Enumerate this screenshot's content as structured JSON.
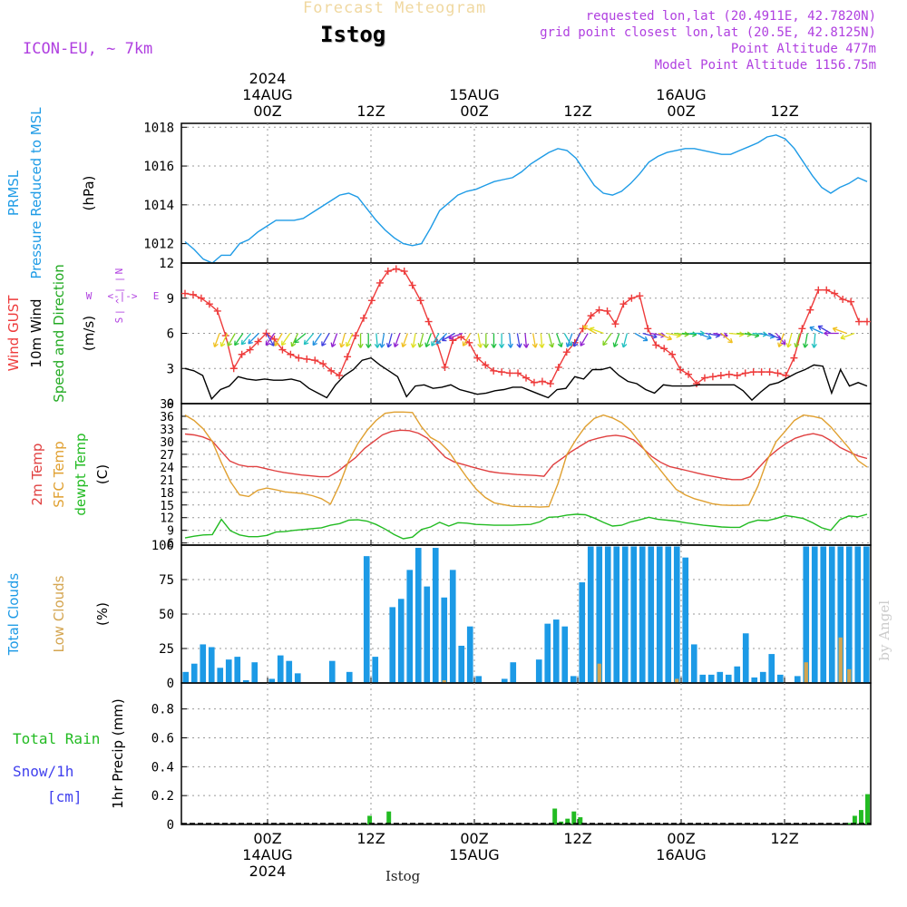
{
  "header": {
    "product": "Forecast Meteogram",
    "station": "Istog",
    "model": "ICON-EU, ~ 7km",
    "requested": "requested lon,lat (20.4911E, 42.7820N)",
    "grid_point": "grid point closest lon,lat (20.5E, 42.8125N)",
    "point_altitude": "Point Altitude 477m",
    "model_point_altitude": "Model Point Altitude 1156.75m",
    "footer_station": "Istog",
    "watermark": "by Angel"
  },
  "colors": {
    "pressure": "#1e9be6",
    "gust": "#ee3b3b",
    "wind": "#000000",
    "direction": "#22aa22",
    "temp2m": "#e04040",
    "sfc_temp": "#e0a030",
    "dewpoint": "#22bb22",
    "total_clouds": "#1c9ae6",
    "low_clouds": "#d4a550",
    "rain": "#22bb22",
    "snow": "#4040ee",
    "compass": "#b040e0"
  },
  "chart_data": [
    {
      "id": "pressure",
      "type": "line",
      "ylabel_lines": [
        {
          "text": "PRMSL",
          "color": "#1e9be6"
        },
        {
          "text": "Pressure Reduced to MSL",
          "color": "#1e9be6"
        },
        {
          "text": "(hPa)",
          "color": "#000000"
        }
      ],
      "ylim": [
        1011,
        1018.2
      ],
      "yticks": [
        1012,
        1014,
        1016,
        1018
      ],
      "series": [
        {
          "color": "#1e9be6",
          "values": [
            1012.1,
            1011.7,
            1011.2,
            1011.0,
            1011.4,
            1011.4,
            1012.0,
            1012.2,
            1012.6,
            1012.9,
            1013.2,
            1013.2,
            1013.2,
            1013.3,
            1013.6,
            1013.9,
            1014.2,
            1014.5,
            1014.6,
            1014.4,
            1013.8,
            1013.2,
            1012.7,
            1012.3,
            1012.0,
            1011.9,
            1012.0,
            1012.8,
            1013.7,
            1014.1,
            1014.5,
            1014.7,
            1014.8,
            1015.0,
            1015.2,
            1015.3,
            1015.4,
            1015.7,
            1016.1,
            1016.4,
            1016.7,
            1016.9,
            1016.8,
            1016.4,
            1015.7,
            1015.0,
            1014.6,
            1014.5,
            1014.7,
            1015.1,
            1015.6,
            1016.2,
            1016.5,
            1016.7,
            1016.8,
            1016.9,
            1016.9,
            1016.8,
            1016.7,
            1016.6,
            1016.6,
            1016.8,
            1017.0,
            1017.2,
            1017.5,
            1017.6,
            1017.4,
            1016.9,
            1016.2,
            1015.5,
            1014.9,
            1014.6,
            1014.9,
            1015.1,
            1015.4,
            1015.2
          ]
        }
      ]
    },
    {
      "id": "wind",
      "type": "line",
      "ylabel_lines": [
        {
          "text": "Wind GUST",
          "color": "#ee3b3b"
        },
        {
          "text": "10m Wind",
          "color": "#000000"
        },
        {
          "text": "Speed and Direction",
          "color": "#22aa22"
        },
        {
          "text": "(m/s)",
          "color": "#000000"
        }
      ],
      "ylim": [
        0,
        12
      ],
      "yticks": [
        0,
        3,
        6,
        9,
        12
      ],
      "compass": {
        "n": "N",
        "s": "S",
        "w": "W",
        "e": "E",
        "arrow_v": "| ^ | |",
        "arrow_h": "<-|->"
      },
      "series": [
        {
          "color": "#ee3b3b",
          "marker": "plus",
          "values": [
            9.4,
            9.3,
            9.0,
            8.5,
            7.9,
            5.8,
            3.0,
            4.2,
            4.6,
            5.3,
            6.0,
            5.5,
            4.6,
            4.2,
            3.9,
            3.8,
            3.7,
            3.4,
            2.8,
            2.4,
            4.0,
            5.8,
            7.3,
            8.8,
            10.3,
            11.3,
            11.5,
            11.3,
            10.1,
            8.8,
            7.0,
            5.3,
            3.1,
            5.4,
            5.7,
            5.2,
            3.9,
            3.3,
            2.8,
            2.7,
            2.6,
            2.6,
            2.2,
            1.8,
            1.9,
            1.7,
            3.1,
            4.4,
            5.2,
            6.4,
            7.5,
            8.0,
            7.9,
            6.8,
            8.5,
            9.0,
            9.2,
            6.4,
            5.0,
            4.7,
            4.2,
            2.9,
            2.5,
            1.7,
            2.2,
            2.3,
            2.4,
            2.5,
            2.4,
            2.6,
            2.7,
            2.7,
            2.7,
            2.6,
            2.4,
            3.9,
            6.4,
            8.0,
            9.7,
            9.7,
            9.4,
            8.9,
            8.7,
            7.0,
            7.0
          ]
        },
        {
          "color": "#000000",
          "values": [
            3.0,
            2.8,
            2.4,
            0.4,
            1.2,
            1.5,
            2.3,
            2.1,
            2.0,
            2.1,
            2.0,
            2.0,
            2.1,
            1.9,
            1.3,
            0.9,
            0.5,
            1.6,
            2.4,
            2.9,
            3.7,
            3.9,
            3.3,
            2.8,
            2.3,
            0.6,
            1.5,
            1.6,
            1.3,
            1.4,
            1.6,
            1.2,
            1.0,
            0.8,
            0.9,
            1.1,
            1.2,
            1.4,
            1.4,
            1.1,
            0.8,
            0.5,
            1.2,
            1.3,
            2.3,
            2.1,
            2.9,
            2.9,
            3.1,
            2.4,
            1.9,
            1.7,
            1.2,
            0.9,
            1.6,
            1.5,
            1.5,
            1.5,
            1.6,
            1.6,
            1.6,
            1.6,
            1.6,
            1.1,
            0.3,
            1.0,
            1.6,
            1.8,
            2.2,
            2.6,
            2.9,
            3.3,
            3.2,
            0.9,
            2.9,
            1.5,
            1.8,
            1.5
          ]
        }
      ],
      "arrow_dirs": [
        200,
        205,
        210,
        215,
        220,
        225,
        150,
        215,
        210,
        215,
        205,
        230,
        220,
        215,
        210,
        200,
        195,
        205,
        180,
        180,
        175,
        190,
        195,
        200,
        200,
        190,
        195,
        200,
        210,
        225,
        240,
        250,
        210,
        170,
        180,
        180,
        180,
        175,
        170,
        175,
        170,
        175,
        165,
        160,
        150,
        200,
        205,
        210,
        300,
        290,
        215,
        200,
        195,
        120,
        105,
        100,
        115,
        100,
        95,
        95,
        90,
        110,
        100,
        100,
        130,
        95,
        95,
        100,
        95,
        105,
        115,
        140,
        200,
        195,
        195,
        190,
        185,
        295,
        300,
        270,
        290,
        250
      ]
    },
    {
      "id": "temperature",
      "type": "line",
      "ylabel_lines": [
        {
          "text": "2m Temp",
          "color": "#e04040"
        },
        {
          "text": "SFC Temp",
          "color": "#e0a030"
        },
        {
          "text": "dewpt Temp",
          "color": "#22bb22"
        },
        {
          "text": "(C)",
          "color": "#000000"
        }
      ],
      "ylim": [
        5.5,
        39
      ],
      "yticks": [
        6,
        9,
        12,
        15,
        18,
        21,
        24,
        27,
        30,
        33,
        36,
        39
      ],
      "series": [
        {
          "color": "#e04040",
          "values": [
            31.8,
            31.6,
            31.1,
            30.2,
            27.8,
            25.4,
            24.5,
            24.1,
            24.1,
            23.6,
            23.1,
            22.7,
            22.4,
            22.1,
            21.9,
            21.7,
            21.7,
            22.9,
            24.6,
            26.2,
            28.4,
            30.0,
            31.6,
            32.4,
            32.7,
            32.6,
            32.0,
            30.8,
            28.5,
            26.3,
            25.2,
            24.6,
            24.0,
            23.4,
            22.9,
            22.6,
            22.4,
            22.2,
            22.1,
            22.0,
            21.8,
            24.5,
            26.0,
            27.6,
            28.9,
            30.2,
            30.8,
            31.3,
            31.5,
            31.2,
            30.4,
            28.5,
            26.5,
            25.1,
            24.1,
            23.6,
            23.1,
            22.6,
            22.1,
            21.7,
            21.3,
            21.0,
            21.0,
            21.7,
            24.0,
            26.3,
            28.1,
            29.6,
            30.8,
            31.5,
            31.9,
            31.4,
            30.2,
            28.6,
            27.6,
            26.6,
            26.0
          ]
        },
        {
          "color": "#e0a030",
          "values": [
            36.3,
            35.0,
            33.0,
            30.0,
            25.0,
            20.5,
            17.4,
            17.0,
            18.5,
            19.0,
            18.6,
            18.1,
            17.9,
            17.7,
            17.2,
            16.5,
            15.2,
            19.8,
            25.5,
            29.5,
            32.6,
            35.0,
            36.7,
            37.0,
            37.0,
            36.9,
            33.5,
            31.0,
            29.8,
            27.7,
            24.5,
            21.5,
            18.8,
            16.8,
            15.5,
            15.1,
            14.7,
            14.6,
            14.6,
            14.5,
            14.6,
            20.0,
            27.0,
            30.5,
            33.5,
            35.5,
            36.3,
            35.6,
            34.5,
            32.6,
            29.8,
            26.5,
            24.0,
            21.3,
            18.7,
            17.4,
            16.5,
            15.9,
            15.3,
            15.0,
            14.9,
            14.9,
            15.0,
            19.5,
            25.5,
            30.0,
            32.5,
            35.0,
            36.3,
            36.0,
            35.5,
            33.5,
            31.0,
            28.5,
            25.5,
            24.0
          ]
        },
        {
          "color": "#22bb22",
          "values": [
            7.2,
            7.6,
            7.9,
            8.0,
            11.6,
            8.9,
            7.9,
            7.5,
            7.5,
            7.8,
            8.6,
            8.7,
            9.0,
            9.2,
            9.4,
            9.6,
            10.2,
            10.6,
            11.4,
            11.5,
            11.2,
            10.4,
            9.3,
            8.0,
            7.0,
            7.4,
            9.2,
            9.8,
            10.9,
            10.0,
            10.8,
            10.7,
            10.4,
            10.3,
            10.2,
            10.2,
            10.2,
            10.3,
            10.4,
            11.0,
            12.1,
            12.2,
            12.6,
            12.8,
            12.7,
            11.9,
            10.9,
            10.0,
            10.2,
            11.0,
            11.5,
            12.1,
            11.6,
            11.4,
            11.2,
            10.8,
            10.5,
            10.2,
            10.0,
            9.8,
            9.7,
            9.7,
            10.8,
            11.4,
            11.3,
            11.8,
            12.5,
            12.2,
            11.8,
            10.8,
            9.6,
            9.0,
            11.5,
            12.4,
            12.2,
            12.8
          ]
        }
      ]
    },
    {
      "id": "clouds",
      "type": "bar",
      "ylabel_lines": [
        {
          "text": "Total Clouds",
          "color": "#1c9ae6"
        },
        {
          "text": "Low Clouds",
          "color": "#d4a550"
        },
        {
          "text": "(%)",
          "color": "#000000"
        }
      ],
      "ylim": [
        0,
        100
      ],
      "yticks": [
        0,
        25,
        50,
        75,
        100
      ],
      "series": [
        {
          "name": "Total Clouds",
          "color": "#1c9ae6",
          "values": [
            8,
            14,
            28,
            26,
            11,
            17,
            19,
            2,
            15,
            0,
            3,
            20,
            16,
            7,
            0,
            0,
            0,
            16,
            0,
            8,
            0,
            92,
            19,
            0,
            55,
            61,
            82,
            98,
            70,
            98,
            62,
            82,
            27,
            41,
            5,
            0,
            0,
            3,
            15,
            0,
            0,
            17,
            43,
            46,
            41,
            5,
            73,
            99,
            99,
            99,
            99,
            99,
            99,
            99,
            99,
            99,
            99,
            99,
            91,
            28,
            6,
            6,
            8,
            6,
            12,
            36,
            4,
            8,
            21,
            6,
            0,
            5,
            99,
            99,
            99,
            99,
            99,
            99,
            99,
            99
          ]
        },
        {
          "name": "Low Clouds",
          "color": "#d4a550",
          "values": [
            0,
            0,
            0,
            0,
            0,
            0,
            0,
            0,
            0,
            0,
            0,
            0,
            0,
            0,
            0,
            0,
            0,
            0,
            0,
            0,
            0,
            0,
            0,
            0,
            0,
            0,
            0,
            0,
            0,
            0,
            2,
            0,
            0,
            0,
            0,
            0,
            0,
            0,
            0,
            0,
            0,
            0,
            0,
            0,
            0,
            0,
            0,
            0,
            14,
            0,
            0,
            0,
            0,
            0,
            0,
            0,
            0,
            3,
            0,
            0,
            0,
            0,
            0,
            0,
            0,
            0,
            0,
            0,
            0,
            0,
            0,
            0,
            15,
            0,
            0,
            0,
            33,
            10,
            0,
            0
          ]
        }
      ]
    },
    {
      "id": "precip",
      "type": "bar",
      "ylabel_lines": [
        {
          "text": "1hr Precip (mm)",
          "color": "#000000"
        }
      ],
      "left_labels": [
        {
          "text": "Total  Rain",
          "color": "#22bb22"
        },
        {
          "text": "Snow/1h",
          "color": "#4040ee"
        },
        {
          "text": "[cm]",
          "color": "#4040ee"
        }
      ],
      "ylim": [
        0,
        0.98
      ],
      "yticks": [
        0,
        0.2,
        0.4,
        0.6,
        0.8
      ],
      "series": [
        {
          "name": "Rain",
          "color": "#22bb22",
          "values": [
            0,
            0,
            0,
            0,
            0,
            0,
            0,
            0,
            0,
            0,
            0,
            0,
            0,
            0,
            0,
            0,
            0,
            0,
            0,
            0,
            0,
            0,
            0,
            0,
            0,
            0,
            0,
            0,
            0.01,
            0.06,
            0,
            0,
            0.09,
            0,
            0,
            0,
            0,
            0,
            0,
            0,
            0,
            0,
            0,
            0,
            0,
            0,
            0,
            0,
            0,
            0,
            0,
            0,
            0,
            0,
            0,
            0,
            0,
            0,
            0.11,
            0.02,
            0.04,
            0.09,
            0.05,
            0,
            0,
            0,
            0,
            0,
            0,
            0,
            0,
            0,
            0,
            0,
            0,
            0,
            0,
            0,
            0,
            0,
            0,
            0,
            0,
            0,
            0,
            0,
            0,
            0,
            0,
            0,
            0,
            0,
            0,
            0,
            0,
            0,
            0,
            0,
            0,
            0,
            0,
            0,
            0,
            0,
            0.01,
            0.06,
            0.1,
            0.21
          ]
        }
      ]
    }
  ],
  "time_axis": {
    "top_year": "2024",
    "ticks": [
      {
        "label": "00Z",
        "date": "14AUG",
        "year": "2024"
      },
      {
        "label": "12Z",
        "date": "",
        "year": ""
      },
      {
        "label": "00Z",
        "date": "15AUG",
        "year": ""
      },
      {
        "label": "12Z",
        "date": "",
        "year": ""
      },
      {
        "label": "00Z",
        "date": "16AUG",
        "year": ""
      },
      {
        "label": "12Z",
        "date": "",
        "year": ""
      }
    ]
  }
}
